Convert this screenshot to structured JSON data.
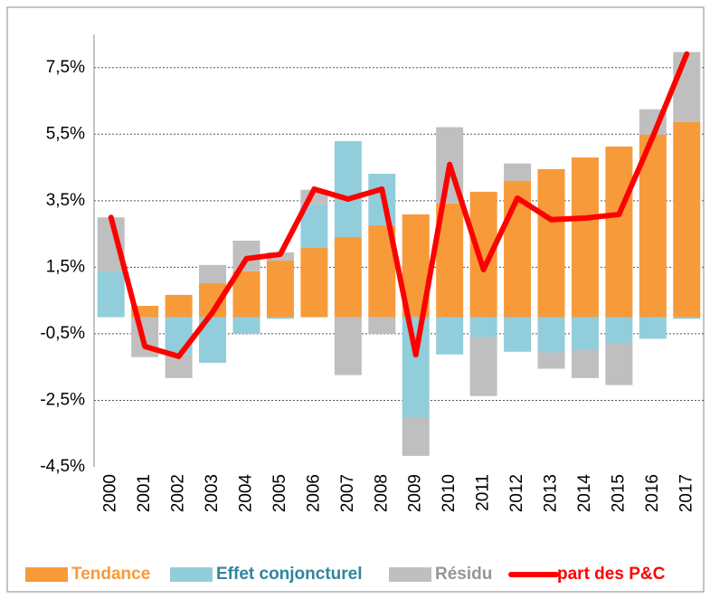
{
  "chart_data": {
    "type": "bar",
    "stacked": true,
    "categories": [
      "2000",
      "2001",
      "2002",
      "2003",
      "2004",
      "2005",
      "2006",
      "2007",
      "2008",
      "2009",
      "2010",
      "2011",
      "2012",
      "2013",
      "2014",
      "2015",
      "2016",
      "2017"
    ],
    "series": [
      {
        "name": "Tendance",
        "type": "bar",
        "color": "#f79a3a",
        "label_color": "#f79a3a",
        "values": [
          0,
          0.34,
          0.67,
          1.02,
          1.38,
          1.7,
          2.08,
          2.41,
          2.76,
          3.09,
          3.42,
          3.77,
          4.1,
          4.45,
          4.8,
          5.13,
          5.49,
          5.87
        ]
      },
      {
        "name": "Effet conjoncturel",
        "type": "bar",
        "color": "#92cddc",
        "label_color": "#31859c",
        "values": [
          1.37,
          0,
          -1.12,
          -1.37,
          -0.5,
          -0.05,
          1.31,
          2.88,
          1.55,
          -3.03,
          -1.12,
          -0.6,
          -1.04,
          -1.06,
          -0.99,
          -0.79,
          -0.65,
          -0.05
        ]
      },
      {
        "name": "Résidu",
        "type": "bar",
        "color": "#bfbfbf",
        "label_color": "#969696",
        "values": [
          1.63,
          -1.2,
          -0.71,
          0.55,
          0.92,
          0.25,
          0.44,
          -1.74,
          -0.5,
          -1.14,
          2.29,
          -1.77,
          0.52,
          -0.49,
          -0.84,
          -1.25,
          0.76,
          2.1
        ]
      },
      {
        "name": "part des P&C",
        "type": "line",
        "color": "#ff0000",
        "label_color": "#ff0000",
        "values": [
          3.0,
          -0.88,
          -1.18,
          0.15,
          1.76,
          1.89,
          3.85,
          3.55,
          3.85,
          -1.13,
          4.59,
          1.43,
          3.58,
          2.93,
          2.98,
          3.09,
          5.43,
          7.91
        ]
      }
    ],
    "ylim": [
      -4.5,
      8.5
    ],
    "yticks": [
      {
        "value": -4.5,
        "label": "-4,5%"
      },
      {
        "value": -2.5,
        "label": "-2,5%"
      },
      {
        "value": -0.5,
        "label": "-0,5%"
      },
      {
        "value": 1.5,
        "label": "1,5%"
      },
      {
        "value": 3.5,
        "label": "3,5%"
      },
      {
        "value": 5.5,
        "label": "5,5%"
      },
      {
        "value": 7.5,
        "label": "7,5%"
      }
    ],
    "grid": true,
    "legend": "bottom"
  }
}
